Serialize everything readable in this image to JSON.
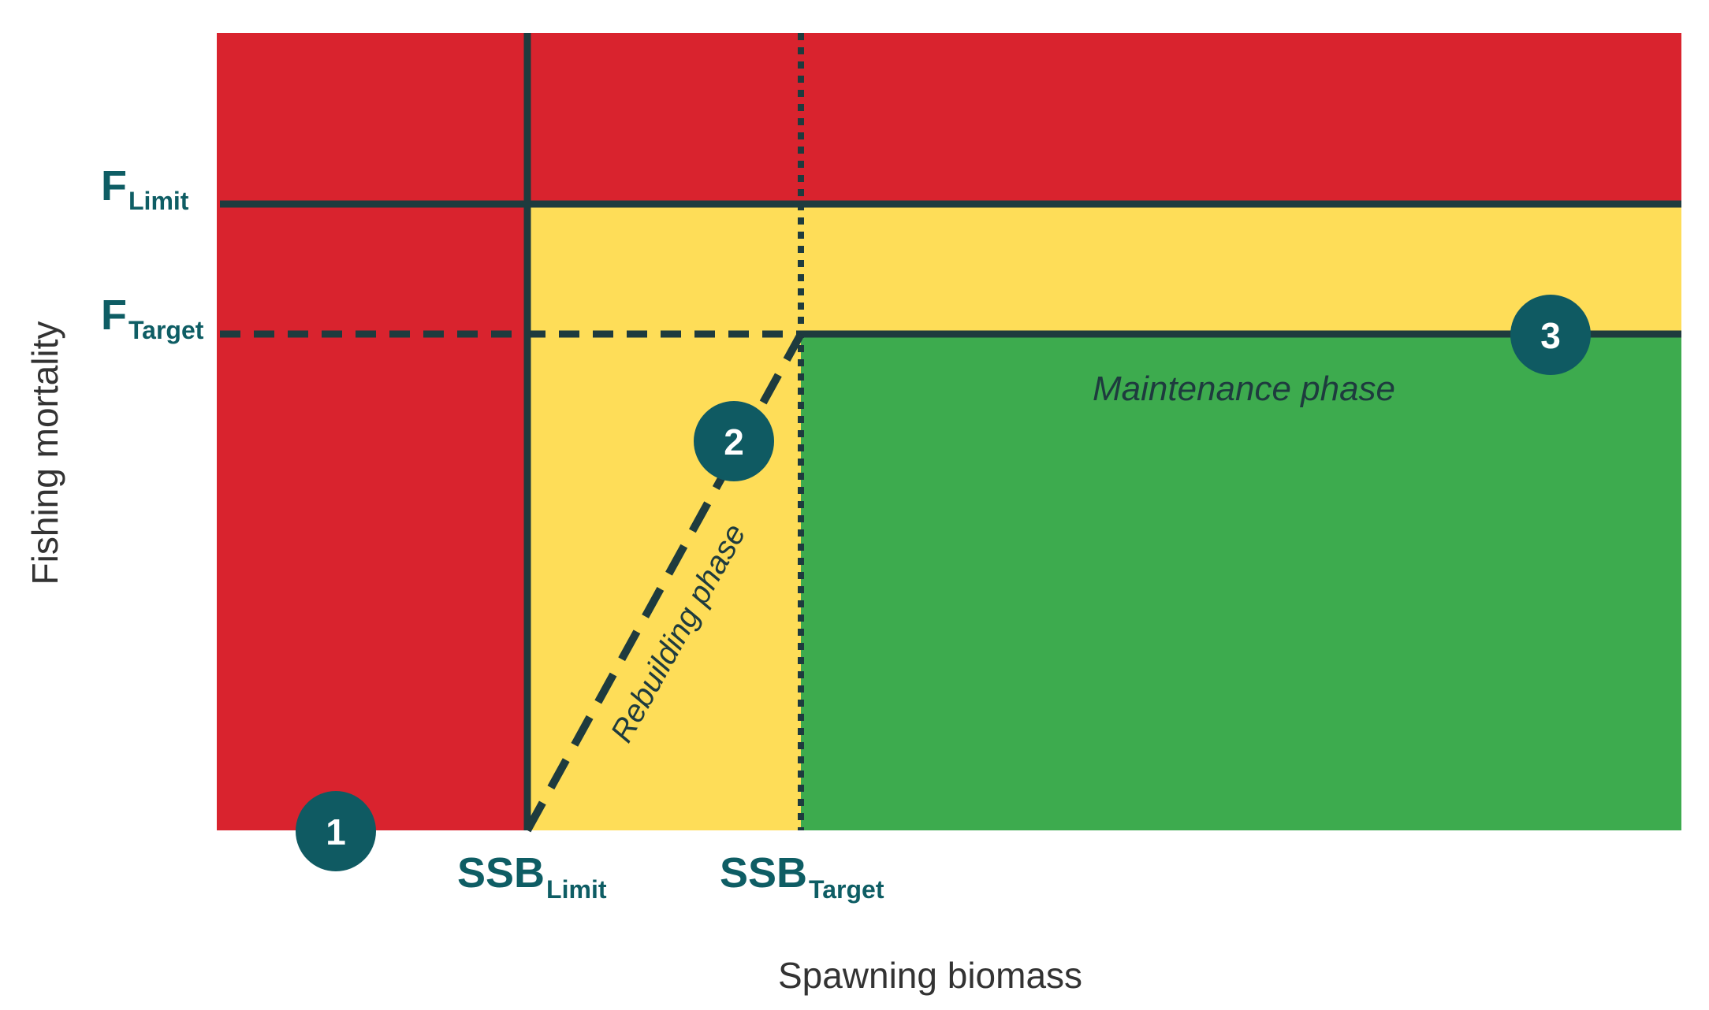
{
  "axes": {
    "x_label": "Spawning biomass",
    "y_label": "Fishing mortality"
  },
  "reference_points": {
    "f_limit": {
      "main": "F",
      "sub": "Limit"
    },
    "f_target": {
      "main": "F",
      "sub": "Target"
    },
    "ssb_limit": {
      "main": "SSB",
      "sub": "Limit"
    },
    "ssb_target": {
      "main": "SSB",
      "sub": "Target"
    }
  },
  "phases": {
    "rebuilding": "Rebuilding phase",
    "maintenance": "Maintenance phase"
  },
  "markers": [
    "1",
    "2",
    "3"
  ],
  "colors": {
    "red_zone": "#d9232e",
    "yellow_zone": "#fedd58",
    "green_zone": "#3dab4e",
    "lines": "#1e3b3e",
    "labels": "#0e5d64",
    "marker_fill": "#0f5a62",
    "marker_text": "#ffffff",
    "axis_text": "#333333"
  }
}
